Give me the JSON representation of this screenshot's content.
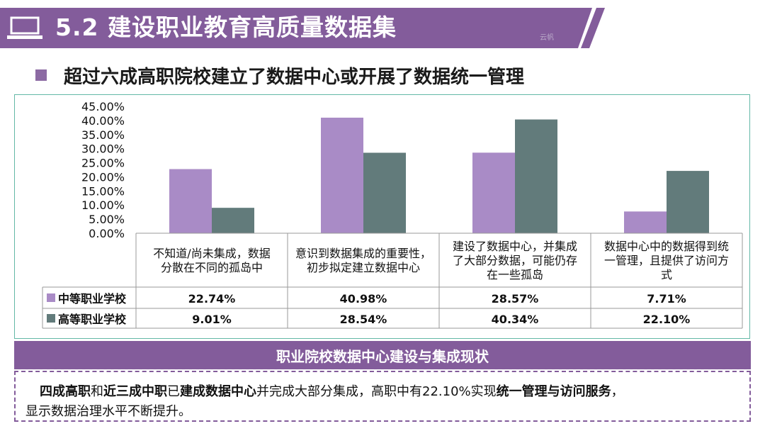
{
  "header": {
    "title": "5.2 建设职业教育高质量数据集",
    "watermark": "云帆",
    "bar_color": "#835c9b"
  },
  "subtitle": "超过六成高职院校建立了数据中心或开展了数据统一管理",
  "icons": [
    "laptop-icon",
    "bullet-square-icon"
  ],
  "chart_data": {
    "type": "bar",
    "title": "",
    "xlabel": "",
    "ylabel": "",
    "ylim": [
      0,
      45
    ],
    "yticks": [
      "45.00%",
      "40.00%",
      "35.00%",
      "30.00%",
      "25.00%",
      "20.00%",
      "15.00%",
      "10.00%",
      "5.00%",
      "0.00%"
    ],
    "categories": [
      [
        "不知道/尚未集成，数据",
        "分散在不同的孤岛中"
      ],
      [
        "意识到数据集成的重要性，",
        "初步拟定建立数据中心"
      ],
      [
        "建设了数据中心，并集成",
        "了大部分数据，可能仍存",
        "在一些孤岛"
      ],
      [
        "数据中心中的数据得到统",
        "一管理，且提供了访问方",
        "式"
      ]
    ],
    "series": [
      {
        "name": "中等职业学校",
        "color": "#a98bc6",
        "values": [
          22.74,
          40.98,
          28.57,
          7.71
        ],
        "labels": [
          "22.74%",
          "40.98%",
          "28.57%",
          "7.71%"
        ]
      },
      {
        "name": "高等职业学校",
        "color": "#627b7b",
        "values": [
          9.01,
          28.54,
          40.34,
          22.1
        ],
        "labels": [
          "9.01%",
          "28.54%",
          "40.34%",
          "22.10%"
        ]
      }
    ],
    "grid": false,
    "legend": "data-table"
  },
  "summary_band": "职业院校数据中心建设与集成现状",
  "note": {
    "p1": "四成高职",
    "p2": "和",
    "p3": "近三成中职",
    "p4": "已",
    "p5": "建成数据中心",
    "p6": "并完成大部分集成，高职中有22.10%实现",
    "p7": "统一管理与访问服务",
    "p8": "，",
    "p9": "显示数据治理水平不断提升。"
  }
}
